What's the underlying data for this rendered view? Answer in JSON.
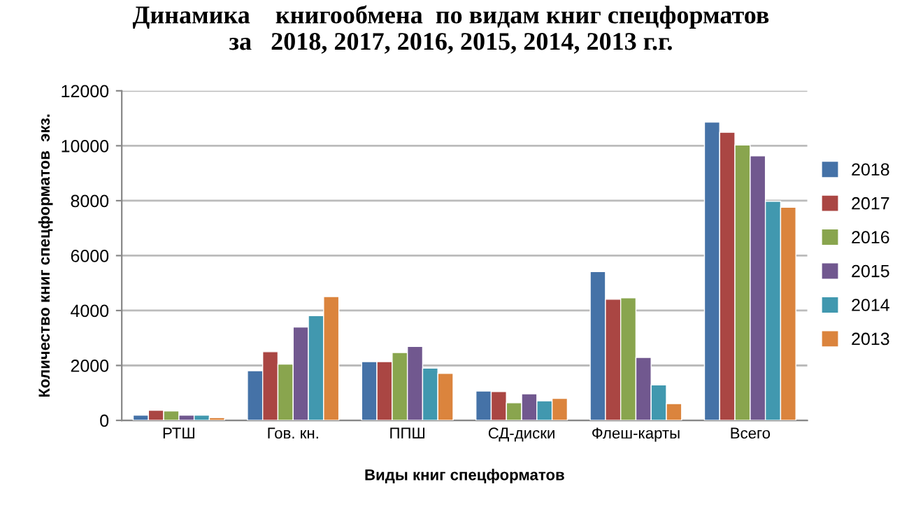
{
  "chart_data": {
    "type": "bar",
    "title": "Динамика    книгообмена  по видам книг спецформатов\nза   2018, 2017, 2016, 2015, 2014, 2013 г.г.",
    "xlabel": "Виды книг спецформатов",
    "ylabel": "Количество книг спецформатов  экз.",
    "categories": [
      "РТШ",
      "Гов. кн.",
      "ППШ",
      "СД-диски",
      "Флеш-карты",
      "Всего"
    ],
    "series": [
      {
        "name": "2018",
        "color": "#4572a7",
        "values": [
          190,
          1810,
          2140,
          1070,
          5420,
          10860
        ]
      },
      {
        "name": "2017",
        "color": "#aa4643",
        "values": [
          370,
          2500,
          2140,
          1050,
          4410,
          10490
        ]
      },
      {
        "name": "2016",
        "color": "#89a54e",
        "values": [
          340,
          2050,
          2470,
          640,
          4460,
          10030
        ]
      },
      {
        "name": "2015",
        "color": "#71588f",
        "values": [
          190,
          3400,
          2690,
          970,
          2290,
          9630
        ]
      },
      {
        "name": "2014",
        "color": "#4198af",
        "values": [
          190,
          3810,
          1900,
          710,
          1290,
          7980
        ]
      },
      {
        "name": "2013",
        "color": "#db843d",
        "values": [
          100,
          4510,
          1710,
          800,
          610,
          7760
        ]
      }
    ],
    "ylim": [
      0,
      12000
    ],
    "yticks": [
      0,
      2000,
      4000,
      6000,
      8000,
      10000,
      12000
    ],
    "grid": "y",
    "legend": "right"
  }
}
